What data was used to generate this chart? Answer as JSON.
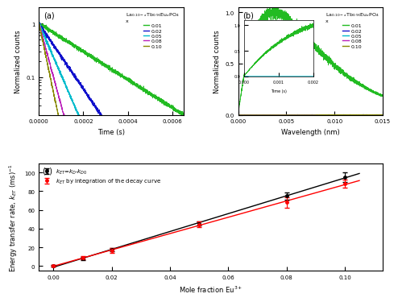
{
  "panel_a": {
    "title": "La$_{0.10-x}$Tb$_{0.90}$Eu$_x$PO$_4$",
    "xlabel": "Time (s)",
    "ylabel": "Normalized counts",
    "label_letter": "(a)",
    "xlim": [
      0,
      0.00065
    ],
    "ylim_log": [
      0.02,
      2.0
    ],
    "xticks": [
      0.0,
      0.0002,
      0.0004,
      0.0006
    ],
    "curves": [
      {
        "label": "0.01",
        "color": "#22bb22",
        "rate": 6000
      },
      {
        "label": "0.02",
        "color": "#1111cc",
        "rate": 14000
      },
      {
        "label": "0.05",
        "color": "#00bbcc",
        "rate": 22000
      },
      {
        "label": "0.08",
        "color": "#bb22bb",
        "rate": 35000
      },
      {
        "label": "0.10",
        "color": "#888800",
        "rate": 45000
      }
    ]
  },
  "panel_b": {
    "title": "La$_{0.10-x}$Tb$_{0.90}$Eu$_x$PO$_4$",
    "xlabel": "Wavelength (nm)",
    "ylabel": "Normalized counts",
    "label_letter": "(b)",
    "xlim": [
      0,
      0.015
    ],
    "ylim": [
      0,
      1.05
    ],
    "xticks": [
      0.0,
      0.005,
      0.01,
      0.015
    ],
    "curves": [
      {
        "label": "0.01",
        "color": "#22bb22",
        "rise": 300,
        "fall": 250
      },
      {
        "label": "0.02",
        "color": "#1111cc",
        "rise": 500,
        "fall": 500
      },
      {
        "label": "0.05",
        "color": "#00bbcc",
        "rise": 600,
        "fall": 700
      },
      {
        "label": "0.08",
        "color": "#bb22bb",
        "rise": 700,
        "fall": 900
      },
      {
        "label": "0.10",
        "color": "#888800",
        "rise": 800,
        "fall": 1100
      }
    ],
    "inset": {
      "xlim": [
        0,
        0.002
      ],
      "ylim": [
        0,
        1.1
      ],
      "xtick_labels": [
        "0.000",
        "0.001",
        "0.002"
      ],
      "curves": [
        {
          "label": "0.01",
          "color": "#22bb22",
          "rise": 300,
          "fall": 250
        },
        {
          "label": "0.05",
          "color": "#00bbcc",
          "rise": 600,
          "fall": 700
        }
      ]
    }
  },
  "panel_c": {
    "label_letter": "(c)",
    "xlabel": "Mole fraction Eu$^{3+}$",
    "ylabel": "Energy transfer rate, $k_{ET}$ (ms)$^{-1}$",
    "xlim": [
      -0.005,
      0.113
    ],
    "ylim": [
      -5,
      110
    ],
    "xticks": [
      0.0,
      0.02,
      0.04,
      0.06,
      0.08,
      0.1
    ],
    "yticks": [
      0,
      20,
      40,
      60,
      80,
      100
    ],
    "series1": {
      "x": [
        0.0,
        0.01,
        0.02,
        0.05,
        0.08,
        0.1
      ],
      "y": [
        0.0,
        8.0,
        17.5,
        45.5,
        75.0,
        95.0
      ],
      "yerr": [
        0.8,
        1.5,
        2.0,
        2.5,
        4.0,
        5.0
      ],
      "color": "black",
      "label": "$k_{ET}$=$k_D$-$k_{D0}$"
    },
    "series2": {
      "x": [
        0.0,
        0.01,
        0.02,
        0.05,
        0.08,
        0.1
      ],
      "y": [
        0.0,
        9.0,
        16.5,
        44.5,
        68.0,
        88.0
      ],
      "yerr": [
        0.8,
        2.0,
        2.5,
        3.0,
        5.5,
        4.5
      ],
      "color": "red",
      "label": "$k_{ET}$ by integration of the decay curve"
    }
  },
  "x_label_legend": "x"
}
